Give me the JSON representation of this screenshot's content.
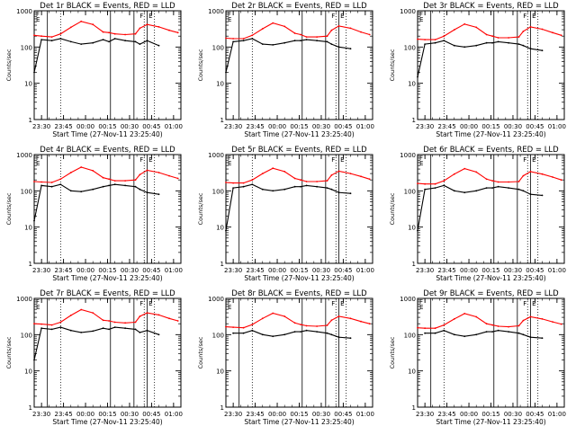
{
  "chart_data": {
    "type": "line",
    "yscale": "log",
    "ylim": [
      1,
      1000
    ],
    "ylabel": "Counts/sec",
    "xlabel": "Start Time (27-Nov-11 23:25:40)",
    "xlim": [
      "23:25",
      "01:05"
    ],
    "x_ticks": [
      "23:30",
      "23:45",
      "00:00",
      "00:15",
      "00:30",
      "00:45",
      "01:00"
    ],
    "y_ticks": [
      "1",
      "10",
      "100",
      "1000"
    ],
    "flags": [
      "F",
      "E",
      "F",
      "E"
    ],
    "colors": {
      "events": "#000000",
      "lld": "#ff0000",
      "axes": "#000000"
    },
    "x": [
      "23:25",
      "23:30",
      "23:37",
      "23:43",
      "23:50",
      "23:57",
      "00:05",
      "00:12",
      "00:16",
      "00:20",
      "00:27",
      "00:34",
      "00:37",
      "00:42",
      "00:50",
      "00:57",
      "01:03"
    ],
    "panels": [
      {
        "title": "Det 1r BLACK = Events, RED = LLD",
        "series": [
          {
            "name": "BLACK = Events",
            "values": [
              20,
              160,
              150,
              170,
              140,
              120,
              130,
              160,
              140,
              170,
              150,
              140,
              120,
              150,
              110,
              null,
              null
            ]
          },
          {
            "name": "RED = LLD",
            "values": [
              210,
              200,
              190,
              230,
              350,
              510,
              420,
              260,
              250,
              230,
              220,
              230,
              330,
              420,
              360,
              290,
              250
            ]
          }
        ]
      },
      {
        "title": "Det 2r BLACK = Events, RED = LLD",
        "series": [
          {
            "name": "BLACK = Events",
            "values": [
              20,
              140,
              150,
              170,
              120,
              115,
              130,
              150,
              150,
              160,
              150,
              140,
              120,
              100,
              90,
              null,
              null
            ]
          },
          {
            "name": "RED = LLD",
            "values": [
              175,
              170,
              170,
              210,
              320,
              460,
              370,
              240,
              220,
              190,
              190,
              200,
              290,
              380,
              330,
              260,
              220
            ]
          }
        ]
      },
      {
        "title": "Det 3r BLACK = Events, RED = LLD",
        "series": [
          {
            "name": "BLACK = Events",
            "values": [
              15,
              120,
              130,
              150,
              110,
              100,
              110,
              130,
              130,
              140,
              130,
              120,
              110,
              90,
              80,
              null,
              null
            ]
          },
          {
            "name": "RED = LLD",
            "values": [
              165,
              160,
              160,
              200,
              300,
              430,
              350,
              220,
              200,
              180,
              180,
              190,
              270,
              360,
              310,
              250,
              210
            ]
          }
        ]
      },
      {
        "title": "Det 4r BLACK = Events, RED = LLD",
        "series": [
          {
            "name": "BLACK = Events",
            "values": [
              15,
              140,
              130,
              150,
              100,
              95,
              110,
              130,
              140,
              150,
              140,
              130,
              110,
              90,
              80,
              null,
              null
            ]
          },
          {
            "name": "RED = LLD",
            "values": [
              180,
              175,
              170,
              210,
              320,
              450,
              360,
              230,
              210,
              190,
              190,
              200,
              280,
              370,
              320,
              260,
              220
            ]
          }
        ]
      },
      {
        "title": "Det 5r BLACK = Events, RED = LLD",
        "series": [
          {
            "name": "BLACK = Events",
            "values": [
              8,
              120,
              130,
              150,
              110,
              100,
              110,
              130,
              130,
              140,
              130,
              120,
              110,
              90,
              85,
              null,
              null
            ]
          },
          {
            "name": "RED = LLD",
            "values": [
              170,
              165,
              165,
              200,
              300,
              420,
              340,
              220,
              200,
              180,
              180,
              190,
              270,
              350,
              300,
              250,
              210
            ]
          }
        ]
      },
      {
        "title": "Det 6r BLACK = Events, RED = LLD",
        "series": [
          {
            "name": "BLACK = Events",
            "values": [
              8,
              110,
              120,
              140,
              100,
              90,
              100,
              120,
              120,
              130,
              120,
              110,
              100,
              80,
              75,
              null,
              null
            ]
          },
          {
            "name": "RED = LLD",
            "values": [
              160,
              155,
              155,
              190,
              290,
              410,
              330,
              210,
              190,
              175,
              175,
              180,
              260,
              340,
              290,
              240,
              200
            ]
          }
        ]
      },
      {
        "title": "Det 7r BLACK = Events, RED = LLD",
        "series": [
          {
            "name": "BLACK = Events",
            "values": [
              20,
              150,
              140,
              160,
              130,
              115,
              125,
              150,
              140,
              160,
              150,
              140,
              115,
              130,
              100,
              null,
              null
            ]
          },
          {
            "name": "RED = LLD",
            "values": [
              200,
              195,
              185,
              220,
              340,
              490,
              400,
              250,
              240,
              220,
              210,
              220,
              320,
              400,
              350,
              280,
              240
            ]
          }
        ]
      },
      {
        "title": "Det 8r BLACK = Events, RED = LLD",
        "series": [
          {
            "name": "BLACK = Events",
            "values": [
              null,
              110,
              110,
              130,
              100,
              90,
              100,
              120,
              120,
              130,
              120,
              110,
              100,
              85,
              80,
              null,
              null
            ]
          },
          {
            "name": "RED = LLD",
            "values": [
              165,
              160,
              155,
              190,
              280,
              390,
              320,
              210,
              190,
              175,
              170,
              180,
              250,
              320,
              280,
              230,
              200
            ]
          }
        ]
      },
      {
        "title": "Det 9r BLACK = Events, RED = LLD",
        "series": [
          {
            "name": "BLACK = Events",
            "values": [
              null,
              110,
              110,
              130,
              100,
              90,
              100,
              120,
              120,
              130,
              120,
              110,
              100,
              85,
              80,
              null,
              null
            ]
          },
          {
            "name": "RED = LLD",
            "values": [
              155,
              150,
              150,
              185,
              270,
              380,
              310,
              200,
              185,
              170,
              165,
              175,
              245,
              310,
              270,
              225,
              195
            ]
          }
        ]
      }
    ]
  }
}
